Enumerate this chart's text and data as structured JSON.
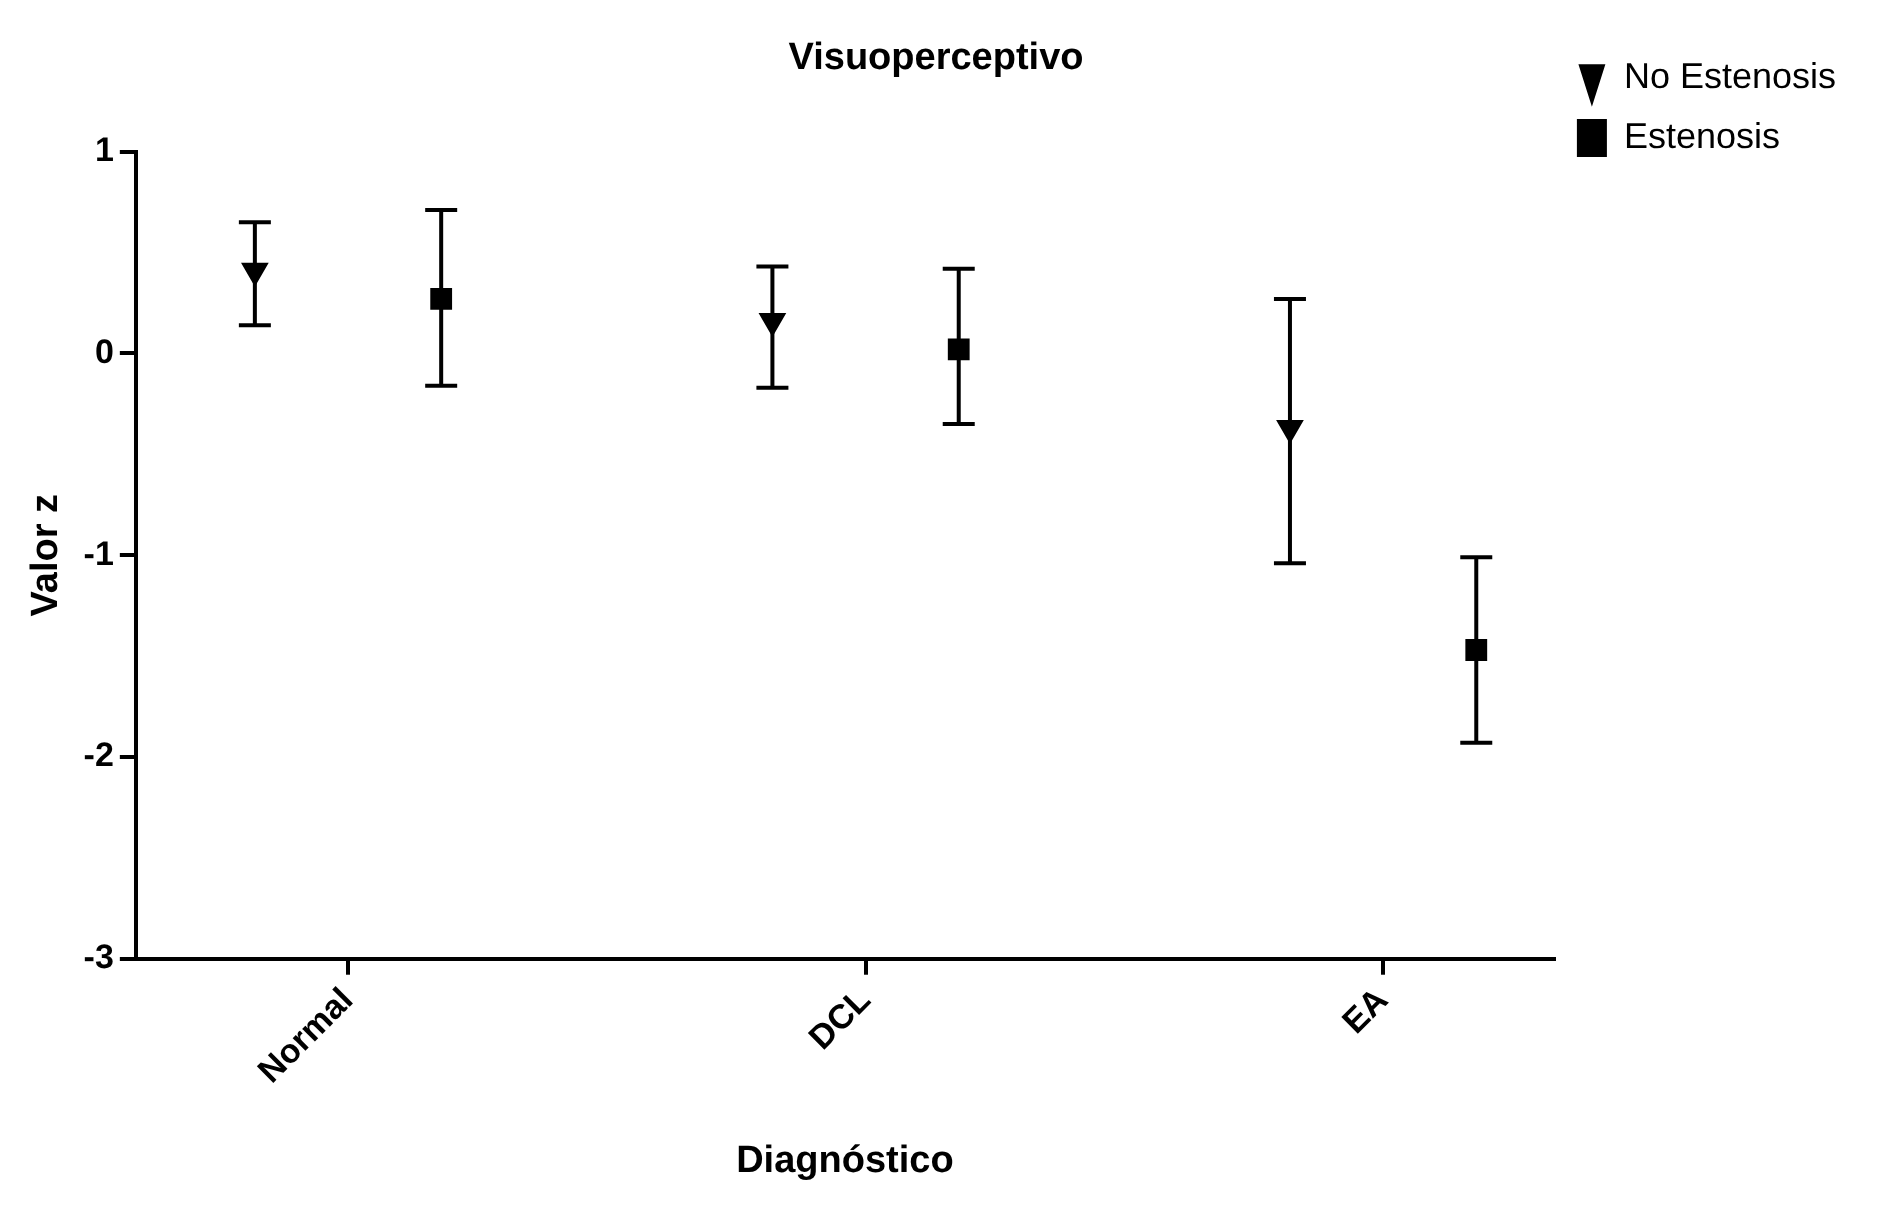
{
  "chart_data": {
    "type": "scatter",
    "title": "Visuoperceptivo",
    "xlabel": "Diagnóstico",
    "ylabel": "Valor z",
    "categories": [
      "Normal",
      "DCL",
      "EA"
    ],
    "series": [
      {
        "name": "No Estenosis",
        "color": "#000000",
        "marker": "triangle",
        "values": [
          0.41,
          0.16,
          -0.37
        ],
        "errors": [
          [
            0.14,
            0.65
          ],
          [
            -0.17,
            0.43
          ],
          [
            -1.04,
            0.27
          ]
        ]
      },
      {
        "name": "Estenosis",
        "color": "#000000",
        "marker": "square",
        "values": [
          0.27,
          0.02,
          -1.47
        ],
        "errors": [
          [
            -0.16,
            0.71
          ],
          [
            -0.35,
            0.42
          ],
          [
            -1.93,
            -1.01
          ]
        ]
      }
    ],
    "ylim": [
      -3,
      1
    ],
    "yticks": [
      -3,
      -2,
      -1,
      0,
      1
    ],
    "grid": false,
    "legend": "top right"
  }
}
